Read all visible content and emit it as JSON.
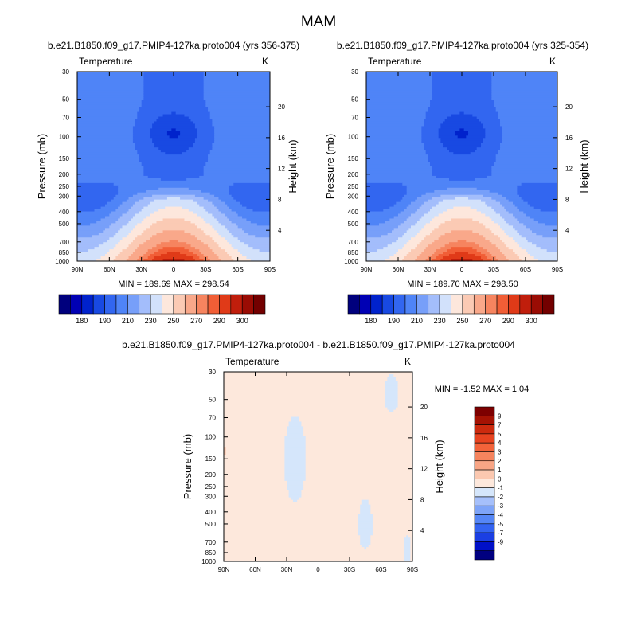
{
  "page_title": "MAM",
  "colors": {
    "frame": "#000000",
    "case_palette": [
      "#00007d",
      "#0000b4",
      "#0022cc",
      "#1849e2",
      "#3266f0",
      "#4f84f7",
      "#779ff9",
      "#a3bdfb",
      "#d2e1fb",
      "#fde7dc",
      "#fbcab4",
      "#f9a88a",
      "#f6845f",
      "#f15e36",
      "#e03a18",
      "#c01e0c",
      "#9a0c04",
      "#730000"
    ],
    "diff_palette": [
      "#000080",
      "#0010c8",
      "#1b3fe3",
      "#3363f1",
      "#5586f6",
      "#7ea4f8",
      "#a6c0fb",
      "#d5e6fb",
      "#fde8dc",
      "#fbc8b0",
      "#f8a585",
      "#f6845e",
      "#f3633a",
      "#e74320",
      "#cc2a0e",
      "#a51203",
      "#7d0000"
    ]
  },
  "chart_data": [
    {
      "type": "contour",
      "title": "b.e21.B1850.f09_g17.PMIP4-127ka.proto004 (yrs 356-375)",
      "variable_label": "Temperature",
      "units_label": "K",
      "xlabel": "",
      "ylabel": "Pressure (mb)",
      "ylabel_right": "Height (km)",
      "x_ticks": [
        "90N",
        "60N",
        "30N",
        "0",
        "30S",
        "60S",
        "90S"
      ],
      "y_ticks": [
        "30",
        "50",
        "70",
        "100",
        "150",
        "200",
        "250",
        "300",
        "400",
        "500",
        "700",
        "850",
        "1000"
      ],
      "y_tick_values": [
        30,
        50,
        70,
        100,
        150,
        200,
        250,
        300,
        400,
        500,
        700,
        850,
        1000
      ],
      "ylim": [
        1000,
        30
      ],
      "height_ticks": [
        "20",
        "16",
        "12",
        "8",
        "4"
      ],
      "height_tick_values": [
        20,
        16,
        12,
        8,
        4
      ],
      "stats_text": "MIN = 189.69   MAX = 298.54",
      "colorbar_labels": [
        "180",
        "190",
        "210",
        "230",
        "250",
        "270",
        "290",
        "300"
      ],
      "colorbar_levels": [
        180,
        185,
        190,
        200,
        210,
        220,
        230,
        240,
        250,
        260,
        270,
        280,
        285,
        290,
        295,
        300,
        305
      ],
      "field": {
        "min": 189.69,
        "max": 298.54
      }
    },
    {
      "type": "contour",
      "title": "b.e21.B1850.f09_g17.PMIP4-127ka.proto004 (yrs 325-354)",
      "variable_label": "Temperature",
      "units_label": "K",
      "xlabel": "",
      "ylabel": "Pressure (mb)",
      "ylabel_right": "Height (km)",
      "x_ticks": [
        "90N",
        "60N",
        "30N",
        "0",
        "30S",
        "60S",
        "90S"
      ],
      "y_ticks": [
        "30",
        "50",
        "70",
        "100",
        "150",
        "200",
        "250",
        "300",
        "400",
        "500",
        "700",
        "850",
        "1000"
      ],
      "y_tick_values": [
        30,
        50,
        70,
        100,
        150,
        200,
        250,
        300,
        400,
        500,
        700,
        850,
        1000
      ],
      "ylim": [
        1000,
        30
      ],
      "height_ticks": [
        "20",
        "16",
        "12",
        "8",
        "4"
      ],
      "height_tick_values": [
        20,
        16,
        12,
        8,
        4
      ],
      "stats_text": "MIN = 189.70   MAX = 298.50",
      "colorbar_labels": [
        "180",
        "190",
        "210",
        "230",
        "250",
        "270",
        "290",
        "300"
      ],
      "colorbar_levels": [
        180,
        185,
        190,
        200,
        210,
        220,
        230,
        240,
        250,
        260,
        270,
        280,
        285,
        290,
        295,
        300,
        305
      ],
      "field": {
        "min": 189.7,
        "max": 298.5
      }
    },
    {
      "type": "contour",
      "title": "b.e21.B1850.f09_g17.PMIP4-127ka.proto004 - b.e21.B1850.f09_g17.PMIP4-127ka.proto004",
      "variable_label": "Temperature",
      "units_label": "K",
      "xlabel": "",
      "ylabel": "Pressure (mb)",
      "ylabel_right": "Height (km)",
      "x_ticks": [
        "90N",
        "60N",
        "30N",
        "0",
        "30S",
        "60S",
        "90S"
      ],
      "y_ticks": [
        "30",
        "50",
        "70",
        "100",
        "150",
        "200",
        "250",
        "300",
        "400",
        "500",
        "700",
        "850",
        "1000"
      ],
      "y_tick_values": [
        30,
        50,
        70,
        100,
        150,
        200,
        250,
        300,
        400,
        500,
        700,
        850,
        1000
      ],
      "ylim": [
        1000,
        30
      ],
      "height_ticks": [
        "20",
        "16",
        "12",
        "8",
        "4"
      ],
      "height_tick_values": [
        20,
        16,
        12,
        8,
        4
      ],
      "stats_text": "MIN =  -1.52   MAX =   1.04",
      "colorbar_labels": [
        "9",
        "7",
        "5",
        "4",
        "3",
        "2",
        "1",
        "0",
        "-1",
        "-2",
        "-3",
        "-4",
        "-5",
        "-7",
        "-9"
      ],
      "colorbar_levels": [
        -9,
        -7,
        -5,
        -4,
        -3,
        -2,
        -1,
        0,
        1,
        2,
        3,
        4,
        5,
        7,
        9
      ],
      "field": {
        "min": -1.52,
        "max": 1.04
      }
    }
  ]
}
